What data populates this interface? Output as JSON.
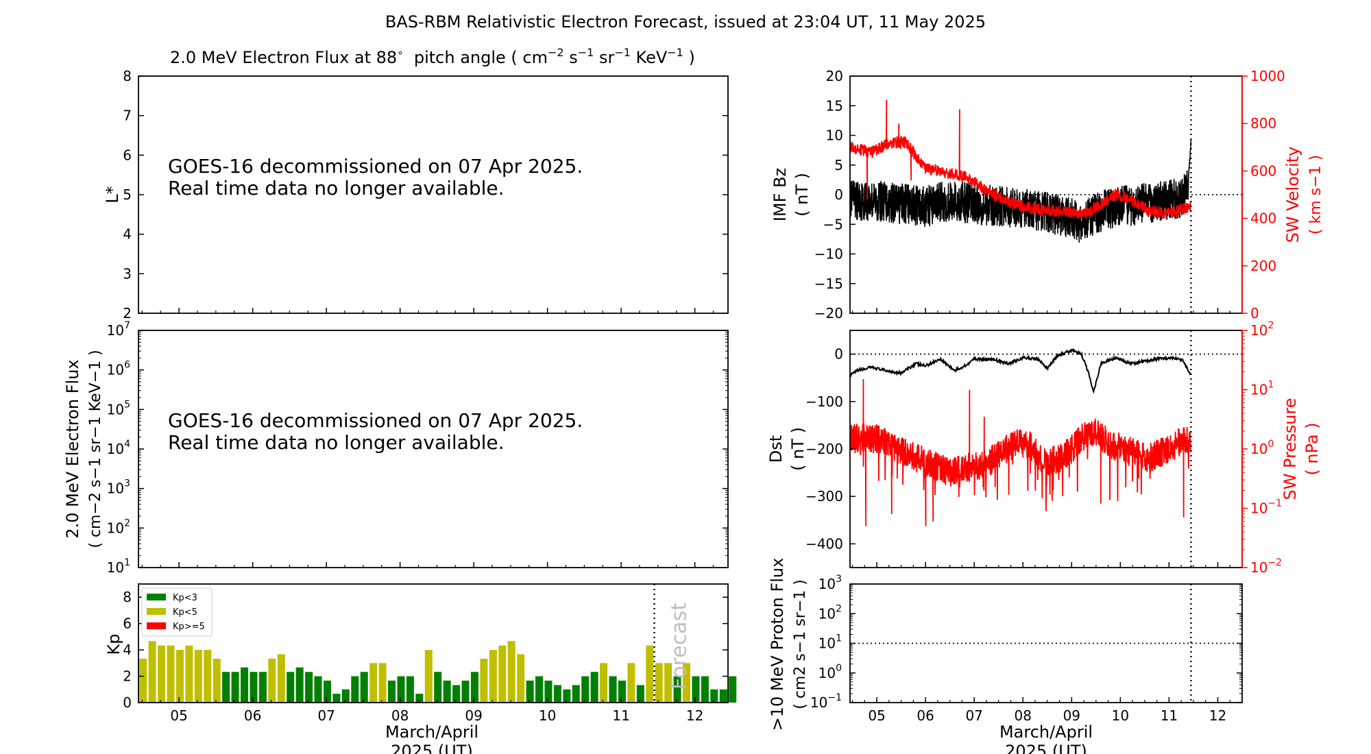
{
  "title": "BAS-RBM Relativistic Electron Forecast, issued at 23:04 UT, 11 May 2025",
  "colors": {
    "black": "#000000",
    "red": "#ff0000",
    "green": "#008000",
    "yellow": "#bfbf00",
    "gray": "#bfbfbf"
  },
  "chart_data": [
    {
      "id": "lstar",
      "type": "line",
      "title": "2.0 MeV Electron Flux at 88",
      "title_degree": "∘",
      "title_units": {
        "open": "pitch angle ( cm",
        "exp1": "−2",
        "s": " s",
        "exp2": "−1",
        "sr": " sr",
        "exp3": "−1",
        "kev": " KeV",
        "exp4": "−1",
        "close": " )"
      },
      "ylabel": "L*",
      "ylim": [
        2,
        8
      ],
      "yticks": [
        "2",
        "3",
        "4",
        "5",
        "6",
        "7",
        "8"
      ],
      "message": [
        "GOES-16 decommissioned on 07 Apr 2025.",
        "Real time data no longer available."
      ]
    },
    {
      "id": "flux",
      "type": "line",
      "scale": "log",
      "ylabel": [
        "2.0 MeV Electron Flux",
        "( cm−2 s−1 sr−1 KeV−1 )"
      ],
      "yticks": [
        "10",
        "10",
        "10",
        "10",
        "10",
        "10",
        "10"
      ],
      "ytick_exponents": [
        "1",
        "2",
        "3",
        "4",
        "5",
        "6",
        "7"
      ],
      "message": [
        "GOES-16 decommissioned on 07 Apr 2025.",
        "Real time data no longer available."
      ]
    },
    {
      "id": "kp",
      "type": "bar",
      "ylabel": "Kp",
      "ylim": [
        0,
        9
      ],
      "yticks": [
        "0",
        "2",
        "4",
        "6",
        "8"
      ],
      "xlabel": [
        "March/April",
        "2025 (UT)"
      ],
      "x_ticks": [
        "05",
        "06",
        "07",
        "08",
        "09",
        "10",
        "11",
        "12"
      ],
      "x_start_day": 4.45,
      "x_end_day": 12.45,
      "bar_interval_hours": 3,
      "values": [
        3.33,
        4.67,
        4.33,
        4.33,
        4,
        4.33,
        4,
        4,
        3.33,
        2.33,
        2.33,
        2.67,
        2.33,
        2.33,
        3.33,
        3.67,
        2.33,
        2.67,
        2.33,
        2,
        1.67,
        0.67,
        1,
        2,
        2.33,
        3,
        3,
        1.67,
        2,
        2,
        0.67,
        4,
        2.33,
        1.67,
        1.33,
        1.67,
        2.33,
        3.33,
        4,
        4.33,
        4.67,
        3.67,
        1.67,
        2,
        1.67,
        1.33,
        1,
        1.33,
        2,
        2.33,
        3,
        2,
        1.67,
        3,
        1.33,
        4.33,
        3,
        3,
        2,
        3,
        2,
        2,
        1,
        1,
        2
      ],
      "forecast_from": 56,
      "forecast_label": "Forecast",
      "legend": [
        "Kp<3",
        "Kp<5",
        "Kp>=5"
      ],
      "legend_position": "top-left"
    },
    {
      "id": "imf",
      "type": "line",
      "ylabel": [
        "IMF Bz",
        "( nT )"
      ],
      "ylim": [
        -20,
        20
      ],
      "yticks": [
        "−20",
        "−15",
        "−10",
        "−5",
        "0",
        "5",
        "10",
        "15",
        "20"
      ],
      "y2label": [
        "SW Velocity",
        "( km s−1 )"
      ],
      "y2lim": [
        0,
        1000
      ],
      "y2ticks": [
        "0",
        "200",
        "400",
        "600",
        "800",
        "1000"
      ],
      "x_start_day": 4.45,
      "x_end_day": 12.5,
      "now_day": 11.45,
      "bz_nodes": [
        [
          4.45,
          -1
        ],
        [
          5.0,
          -1
        ],
        [
          5.5,
          -1.5
        ],
        [
          6.0,
          -2
        ],
        [
          6.5,
          -1
        ],
        [
          7.0,
          -1.5
        ],
        [
          7.5,
          -2
        ],
        [
          8.0,
          -2.5
        ],
        [
          8.5,
          -3
        ],
        [
          9.0,
          -4
        ],
        [
          9.2,
          -5
        ],
        [
          9.5,
          -3
        ],
        [
          10.0,
          -2
        ],
        [
          10.5,
          -1.5
        ],
        [
          11.0,
          -1
        ],
        [
          11.3,
          -0.5
        ],
        [
          11.4,
          3
        ],
        [
          11.45,
          9
        ]
      ],
      "bz_spread": 3.5,
      "v_nodes": [
        [
          4.45,
          700
        ],
        [
          4.9,
          680
        ],
        [
          5.3,
          720
        ],
        [
          5.6,
          720
        ],
        [
          6.0,
          610
        ],
        [
          6.5,
          590
        ],
        [
          6.9,
          570
        ],
        [
          7.3,
          510
        ],
        [
          7.7,
          470
        ],
        [
          8.2,
          440
        ],
        [
          8.8,
          430
        ],
        [
          9.3,
          420
        ],
        [
          9.6,
          460
        ],
        [
          9.9,
          500
        ],
        [
          10.2,
          480
        ],
        [
          10.6,
          430
        ],
        [
          11.0,
          420
        ],
        [
          11.45,
          450
        ]
      ],
      "v_spikes": [
        [
          4.8,
          480
        ],
        [
          5.2,
          900
        ],
        [
          5.45,
          800
        ],
        [
          5.7,
          560
        ],
        [
          6.7,
          860
        ]
      ]
    },
    {
      "id": "dst",
      "type": "line",
      "ylabel": [
        "Dst",
        "( nT )"
      ],
      "ylim": [
        -450,
        50
      ],
      "yticks": [
        "−400",
        "−300",
        "−200",
        "−100",
        "0"
      ],
      "y2label": [
        "SW Pressure",
        "( nPa )"
      ],
      "y2scale": "log",
      "y2ticks": [
        "10",
        "10",
        "10",
        "10",
        "10"
      ],
      "y2tick_exponents": [
        "−2",
        "−1",
        "0",
        "1",
        "2"
      ],
      "x_start_day": 4.45,
      "x_end_day": 12.5,
      "now_day": 11.45,
      "dst_nodes": [
        [
          4.45,
          -45
        ],
        [
          4.6,
          -35
        ],
        [
          4.9,
          -28
        ],
        [
          5.2,
          -35
        ],
        [
          5.5,
          -40
        ],
        [
          5.8,
          -20
        ],
        [
          6.0,
          -25
        ],
        [
          6.3,
          -10
        ],
        [
          6.6,
          -35
        ],
        [
          6.8,
          -25
        ],
        [
          7.0,
          -10
        ],
        [
          7.4,
          -12
        ],
        [
          7.7,
          -20
        ],
        [
          8.0,
          -8
        ],
        [
          8.3,
          -10
        ],
        [
          8.5,
          -30
        ],
        [
          8.7,
          -5
        ],
        [
          9.0,
          8
        ],
        [
          9.2,
          0
        ],
        [
          9.35,
          -40
        ],
        [
          9.45,
          -80
        ],
        [
          9.6,
          -20
        ],
        [
          9.9,
          -8
        ],
        [
          10.2,
          -20
        ],
        [
          10.5,
          -15
        ],
        [
          10.8,
          -10
        ],
        [
          11.1,
          -8
        ],
        [
          11.3,
          -15
        ],
        [
          11.45,
          -45
        ]
      ],
      "p_nodes": [
        [
          4.45,
          1.5
        ],
        [
          5.0,
          1.5
        ],
        [
          5.5,
          0.9
        ],
        [
          6.0,
          0.6
        ],
        [
          6.5,
          0.4
        ],
        [
          7.0,
          0.5
        ],
        [
          7.3,
          0.6
        ],
        [
          7.6,
          0.9
        ],
        [
          8.0,
          1.4
        ],
        [
          8.4,
          0.6
        ],
        [
          8.8,
          0.7
        ],
        [
          9.0,
          1.0
        ],
        [
          9.4,
          2.0
        ],
        [
          9.8,
          1.2
        ],
        [
          10.2,
          0.9
        ],
        [
          10.6,
          0.7
        ],
        [
          11.0,
          1.0
        ],
        [
          11.45,
          1.5
        ]
      ],
      "p_spikes": [
        [
          4.72,
          15
        ],
        [
          4.77,
          0.05
        ],
        [
          5.3,
          0.08
        ],
        [
          6.0,
          0.05
        ],
        [
          6.15,
          0.06
        ],
        [
          6.9,
          10
        ],
        [
          7.2,
          3.5
        ],
        [
          8.3,
          0.3
        ],
        [
          9.6,
          0.12
        ],
        [
          11.3,
          0.07
        ],
        [
          11.45,
          6
        ]
      ]
    },
    {
      "id": "proton",
      "type": "line",
      "scale": "log",
      "ylabel": [
        ">10 MeV Proton Flux",
        "( cm2 s−1 sr−1 )"
      ],
      "yticks": [
        "10",
        "10",
        "10",
        "10",
        "10"
      ],
      "ytick_exponents": [
        "−1",
        "0",
        "1",
        "2",
        "3"
      ],
      "threshold": 10,
      "xlabel": [
        "March/April",
        "2025 (UT)"
      ],
      "x_ticks": [
        "05",
        "06",
        "07",
        "08",
        "09",
        "10",
        "11",
        "12"
      ],
      "x_start_day": 4.45,
      "x_end_day": 12.5,
      "now_day": 11.45
    }
  ]
}
